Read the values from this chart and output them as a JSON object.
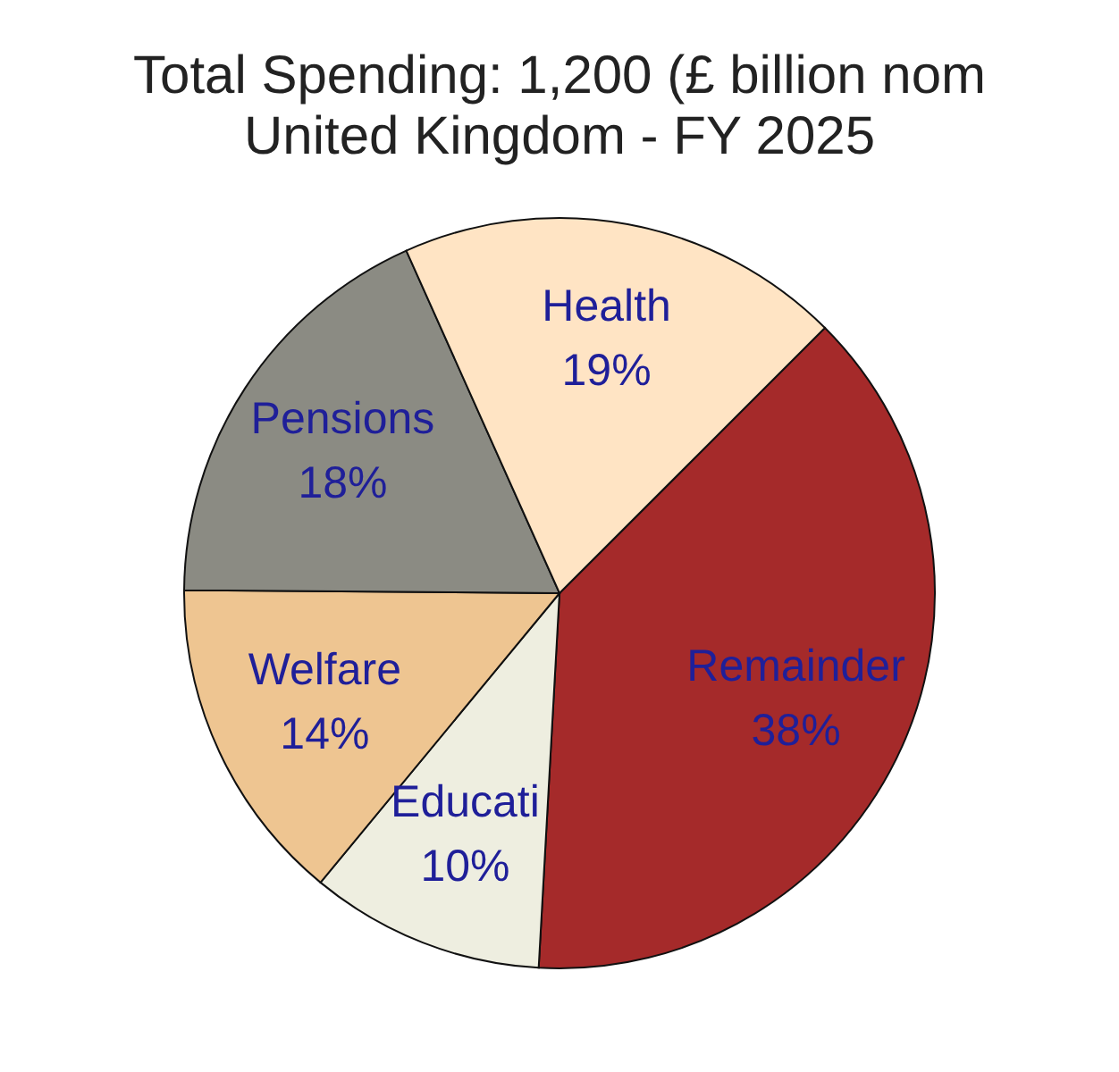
{
  "chart_data": {
    "type": "pie",
    "title": "Total Spending: 1,200 (£ billion nom",
    "subtitle": "United Kingdom - FY 2025",
    "categories": [
      "Remainder",
      "Educati",
      "Welfare",
      "Pensions",
      "Health"
    ],
    "values": [
      38,
      10,
      14,
      18,
      19
    ],
    "value_labels": [
      "38%",
      "10%",
      "14%",
      "18%",
      "19%"
    ],
    "colors": [
      "#a52a2a",
      "#eeeee0",
      "#eec591",
      "#8b8b83",
      "#ffe4c4"
    ]
  }
}
